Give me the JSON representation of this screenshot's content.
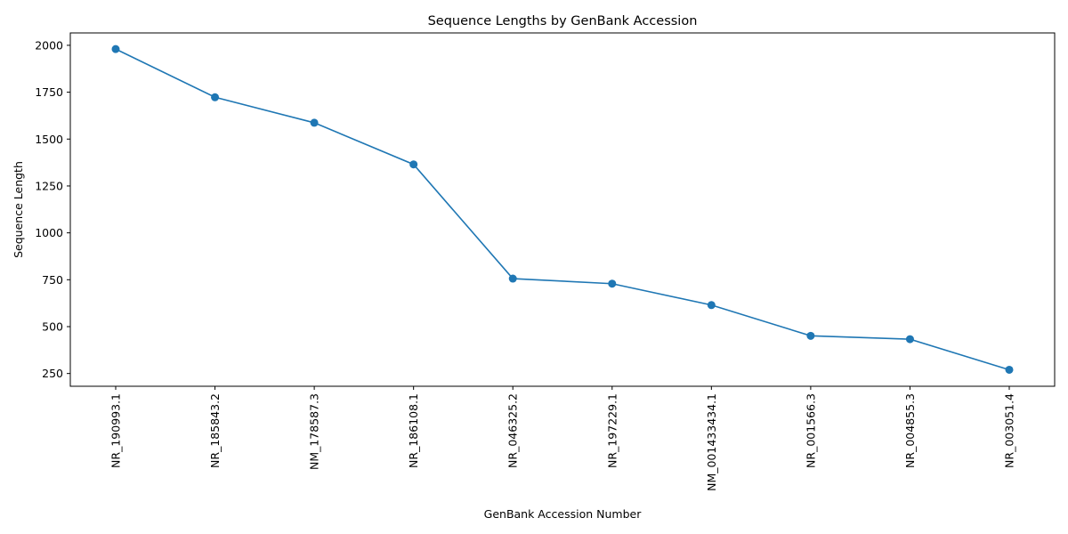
{
  "chart_data": {
    "type": "line",
    "title": "Sequence Lengths by GenBank Accession",
    "xlabel": "GenBank Accession Number",
    "ylabel": "Sequence Length",
    "categories": [
      "NR_190993.1",
      "NR_185843.2",
      "NM_178587.3",
      "NR_186108.1",
      "NR_046325.2",
      "NR_197229.1",
      "NM_001433434.1",
      "NR_001566.3",
      "NR_004855.3",
      "NR_003051.4"
    ],
    "series": [
      {
        "values": [
          1980,
          1723,
          1587,
          1365,
          756,
          729,
          615,
          451,
          433,
          270
        ]
      }
    ],
    "ylim": [
      182,
      2066
    ],
    "yticks": [
      250,
      500,
      750,
      1000,
      1250,
      1500,
      1750,
      2000
    ],
    "grid": false,
    "color": "#1f77b4",
    "markers": true
  }
}
